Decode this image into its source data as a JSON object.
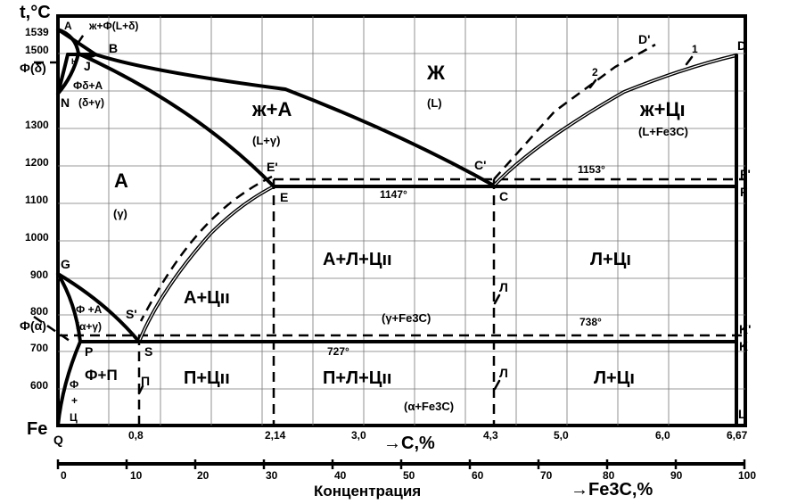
{
  "axis": {
    "y_label": "t,°C",
    "x_label": "→C,%",
    "x2_label": "→Fe3C,%",
    "concentration_label": "Концентрация",
    "origin": "Fe",
    "y_ticks": [
      "1539",
      "1500",
      "1300",
      "1200",
      "1100",
      "1000",
      "900",
      "800",
      "700",
      "600"
    ],
    "x_ticks": [
      "0,8",
      "2,14",
      "3,0",
      "4,3",
      "5,0",
      "6,0",
      "6,67"
    ],
    "scale_ticks": [
      "0",
      "10",
      "20",
      "30",
      "40",
      "50",
      "60",
      "70",
      "80",
      "90",
      "100"
    ]
  },
  "points": {
    "A": "A",
    "B": "B",
    "H": "H",
    "J": "J",
    "N": "N",
    "D": "D",
    "D_prime": "D'",
    "E": "E",
    "E_prime": "E'",
    "C": "C",
    "C_prime": "C'",
    "F": "F",
    "F_prime": "F'",
    "G": "G",
    "P": "P",
    "S": "S",
    "S_prime": "S'",
    "K": "K",
    "K_prime": "K'",
    "Q": "Q",
    "L": "L",
    "curve1": "1",
    "curve2": "2"
  },
  "labels": {
    "phi_delta": "Ф(δ)",
    "phi_alpha": "Ф(α)",
    "liq_phi": "ж+Ф(L+δ)",
    "phi_delta_a": "Фδ+А",
    "delta_gamma": "(δ+γ)",
    "zh": "Ж",
    "zh_sub": "(L)",
    "zh_a": "ж+А",
    "zh_a_sub": "(L+γ)",
    "zh_c": "ж+Цı",
    "zh_c_sub": "(L+Fe3C)",
    "a": "А",
    "a_sub": "(γ)",
    "t1153": "1153°",
    "t1147": "1147°",
    "a_l_c": "А+Л+Цıı",
    "l_c1": "Л+Цı",
    "a_c2": "А+Цıı",
    "gamma_fe3c": "(γ+Fe3C)",
    "t738": "738°",
    "t727": "727°",
    "phi_a": "Ф +А",
    "alpha_gamma": "(α+γ)",
    "phi_p": "Ф+П",
    "p": "П",
    "p_c2": "П+Цıı",
    "p_l_c2": "П+Л+Цıı",
    "l_c1_low": "Л+Цı",
    "alpha_fe3c": "(α+Fe3C)",
    "l_mark1": "Л",
    "l_mark2": "Л",
    "phi_c_1": "Ф",
    "phi_c_2": "+",
    "phi_c_3": "Ц"
  }
}
